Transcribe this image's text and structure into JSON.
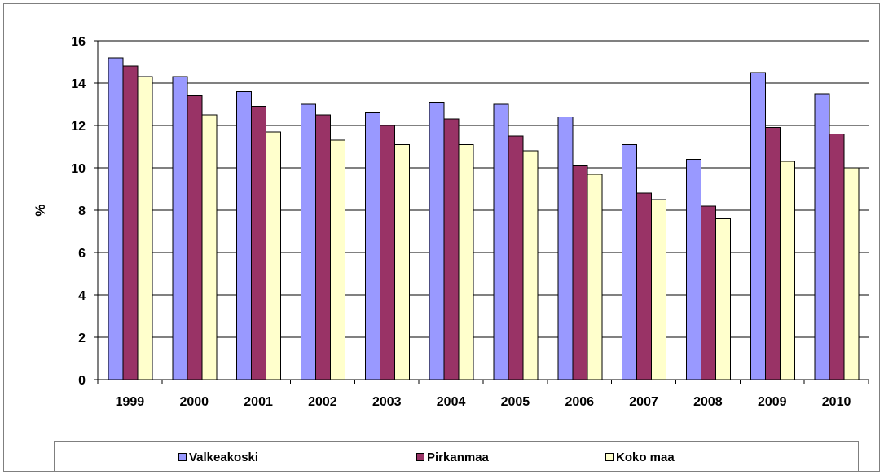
{
  "chart_data": {
    "type": "bar",
    "title": "",
    "xlabel": "",
    "ylabel": "%",
    "ylim": [
      0,
      16
    ],
    "yticks": [
      "0",
      "2",
      "4",
      "6",
      "8",
      "10",
      "12",
      "14",
      "16"
    ],
    "grid": true,
    "legend_position": "bottom",
    "categories": [
      "1999",
      "2000",
      "2001",
      "2002",
      "2003",
      "2004",
      "2005",
      "2006",
      "2007",
      "2008",
      "2009",
      "2010"
    ],
    "series": [
      {
        "name": "Valkeakoski",
        "color": "#9999ff",
        "values": [
          15.2,
          14.3,
          13.6,
          13.0,
          12.6,
          13.1,
          13.0,
          12.4,
          11.1,
          10.4,
          14.5,
          13.5
        ]
      },
      {
        "name": "Pirkanmaa",
        "color": "#993366",
        "values": [
          14.8,
          13.4,
          12.9,
          12.5,
          12.0,
          12.3,
          11.5,
          10.1,
          8.8,
          8.2,
          11.9,
          11.6
        ]
      },
      {
        "name": "Koko maa",
        "color": "#ffffcc",
        "values": [
          14.3,
          12.5,
          11.7,
          11.3,
          11.1,
          11.1,
          10.8,
          9.7,
          8.5,
          7.6,
          10.3,
          10.0
        ]
      }
    ]
  }
}
